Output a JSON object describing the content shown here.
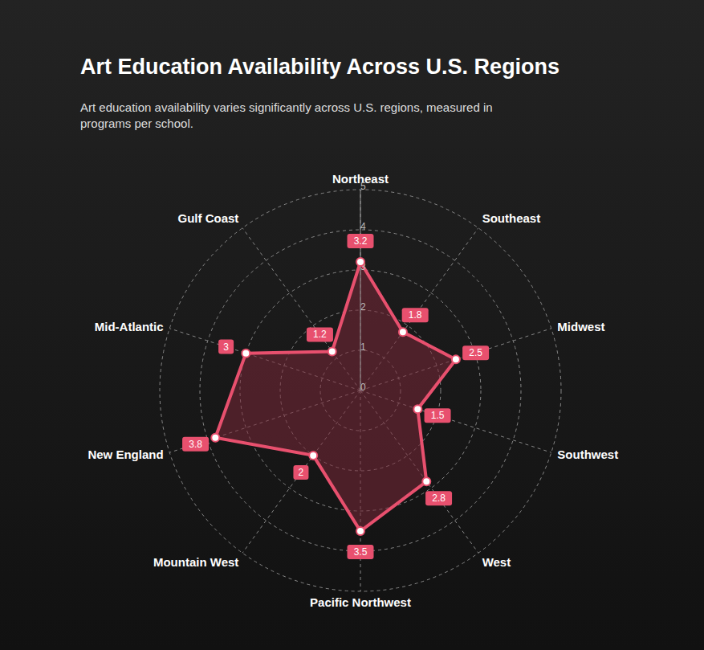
{
  "chart_data": {
    "type": "radar",
    "title": "Art Education Availability Across U.S. Regions",
    "subtitle": "Art education availability varies significantly across U.S. regions, measured in programs per school.",
    "categories": [
      "Northeast",
      "Southeast",
      "Midwest",
      "Southwest",
      "West",
      "Pacific Northwest",
      "Mountain West",
      "New England",
      "Mid-Atlantic",
      "Gulf Coast"
    ],
    "values": [
      3.2,
      1.8,
      2.5,
      1.5,
      2.8,
      3.5,
      2,
      3.8,
      3,
      1.2
    ],
    "color": "#e8506e",
    "ylim": [
      0,
      5
    ],
    "yticks": [
      0,
      1,
      2,
      3,
      4,
      5
    ],
    "grid": true,
    "data_labels": true
  }
}
